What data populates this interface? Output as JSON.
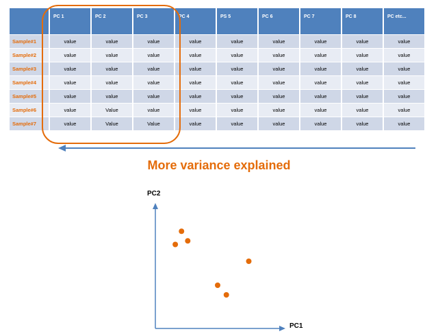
{
  "table": {
    "corner": "",
    "headers": [
      "PC 1",
      "PC 2",
      "PC 3",
      "PC 4",
      "PS 5",
      "PC 6",
      "PC 7",
      "PC 8",
      "PC etc..."
    ],
    "rows": [
      {
        "label": "Sample#1",
        "values": [
          "value",
          "value",
          "value",
          "value",
          "value",
          "value",
          "value",
          "value",
          "value"
        ]
      },
      {
        "label": "Sample#2",
        "values": [
          "value",
          "value",
          "value",
          "value",
          "value",
          "value",
          "value",
          "value",
          "value"
        ]
      },
      {
        "label": "Sample#3",
        "values": [
          "value",
          "value",
          "value",
          "value",
          "value",
          "value",
          "value",
          "value",
          "value"
        ]
      },
      {
        "label": "Sample#4",
        "values": [
          "value",
          "value",
          "value",
          "value",
          "value",
          "value",
          "value",
          "value",
          "value"
        ]
      },
      {
        "label": "Sample#5",
        "values": [
          "value",
          "value",
          "value",
          "value",
          "value",
          "value",
          "value",
          "value",
          "value"
        ]
      },
      {
        "label": "Sample#6",
        "values": [
          "value",
          "Value",
          "value",
          "value",
          "value",
          "value",
          "value",
          "value",
          "value"
        ]
      },
      {
        "label": "Sample#7",
        "values": [
          "value",
          "Value",
          "Value",
          "value",
          "value",
          "value",
          "value",
          "value",
          "value"
        ]
      }
    ]
  },
  "variance_label": "More variance explained",
  "scatter": {
    "x_label": "PC1",
    "y_label": "PC2",
    "points": [
      {
        "x": 0.21,
        "y": 0.81
      },
      {
        "x": 0.26,
        "y": 0.73
      },
      {
        "x": 0.16,
        "y": 0.7
      },
      {
        "x": 0.75,
        "y": 0.56
      },
      {
        "x": 0.5,
        "y": 0.36
      },
      {
        "x": 0.57,
        "y": 0.28
      }
    ]
  },
  "colors": {
    "header_blue": "#4f81bd",
    "row_dark": "#cfd7e7",
    "row_light": "#e8ecf4",
    "accent_orange": "#e46c0a",
    "arrow_blue": "#4f81bd"
  }
}
